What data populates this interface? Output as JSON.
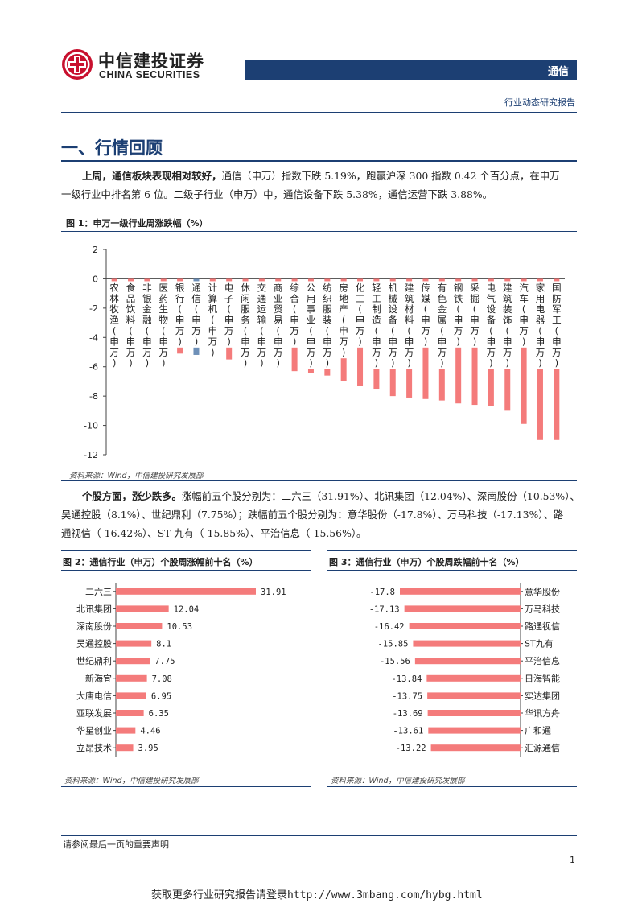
{
  "header": {
    "logo_cn": "中信建投证券",
    "logo_en": "CHINA SECURITIES",
    "sector": "通信",
    "report_type": "行业动态研究报告"
  },
  "section": {
    "title": "一、行情回顾"
  },
  "para1": {
    "lead": "上周，通信板块表现相对较好，",
    "line1_rest": "通信（申万）指数下跌 5.19%，跑赢沪深 300 指数 0.42 个百分点，在申万",
    "line2": "一级行业中排名第 6 位。二级子行业（申万）中，通信设备下跌 5.38%，通信运营下跌 3.88%。"
  },
  "figure1": {
    "title": "图 1：申万一级行业周涨跌幅（%）",
    "source": "资料来源：Wind，中信建投研究发展部"
  },
  "para2": {
    "lead": "个股方面，涨少跌多。",
    "line1_rest": "涨幅前五个股分别为：二六三（31.91%）、北讯集团（12.04%）、深南股份（10.53%）、",
    "line2": "吴通控股（8.1%）、世纪鼎利（7.75%）；跌幅前五个股分别为：意华股份（-17.8%）、万马科技（-17.13%）、路",
    "line3": "通视信（-16.42%）、ST 九有（-15.85%）、平治信息（-15.56%）。"
  },
  "figure2": {
    "title": "图 2：通信行业（申万）个股周涨幅前十名（%）",
    "source": "资料来源：Wind，中信建投研究发展部"
  },
  "figure3": {
    "title": "图 3：通信行业（申万）个股周跌幅前十名（%）",
    "source": "资料来源：Wind，中信建投研究发展部"
  },
  "footer": {
    "note": "请参阅最后一页的重要声明",
    "page": "1",
    "link": "获取更多行业研究报告请登录http://www.3mbang.com/hybg.html"
  },
  "colors": {
    "bar": "#f47b7b",
    "highlight": "#6e90b8",
    "brand": "#1c3f73",
    "logo_red": "#c8102e"
  },
  "chart_data": [
    {
      "type": "bar",
      "categories": [
        "农林牧渔(申万)",
        "食品饮料(申万)",
        "非银金融(申万)",
        "医药生物(申万)",
        "银行(申万)",
        "通信(申万)",
        "计算机(申万)",
        "电子(申万)",
        "休闲服务(申万)",
        "交通运输(申万)",
        "商业贸易(申万)",
        "综合(申万)",
        "公用事业(申万)",
        "纺织服装(申万)",
        "房地产(申万)",
        "化工(申万)",
        "轻工制造(申万)",
        "机械设备(申万)",
        "建筑材料(申万)",
        "传媒(申万)",
        "有色金属(申万)",
        "钢铁(申万)",
        "采掘(申万)",
        "电气设备(申万)",
        "建筑装饰(申万)",
        "汽车(申万)",
        "家用电器(申万)",
        "国防军工(申万)"
      ],
      "values": [
        -3.1,
        -4.0,
        -4.2,
        -4.5,
        -5.1,
        -5.19,
        -5.4,
        -5.5,
        -5.7,
        -5.9,
        -6.0,
        -6.3,
        -6.4,
        -6.6,
        -7.0,
        -7.3,
        -7.5,
        -8.0,
        -8.1,
        -8.2,
        -8.3,
        -8.5,
        -8.6,
        -8.7,
        -9.0,
        -9.9,
        -11.0,
        -11.0
      ],
      "highlight": "通信(申万)",
      "yticks": [
        2,
        0,
        -2,
        -4,
        -6,
        -8,
        -10,
        -12
      ],
      "ylim": [
        -12,
        2
      ]
    },
    {
      "type": "bar",
      "orientation": "horizontal",
      "categories": [
        "二六三",
        "北讯集团",
        "深南股份",
        "吴通控股",
        "世纪鼎利",
        "新海宜",
        "大唐电信",
        "亚联发展",
        "华星创业",
        "立昂技术"
      ],
      "values": [
        31.91,
        12.04,
        10.53,
        8.1,
        7.75,
        7.08,
        6.95,
        6.35,
        4.46,
        3.95
      ],
      "value_labels": [
        "31.91",
        "12.04",
        "10.53",
        "8.1",
        "7.75",
        "7.08",
        "6.95",
        "6.35",
        "4.46",
        "3.95"
      ],
      "xlim": [
        0,
        31.91
      ]
    },
    {
      "type": "bar",
      "orientation": "horizontal",
      "categories": [
        "意华股份",
        "万马科技",
        "路通视信",
        "ST九有",
        "平治信息",
        "日海智能",
        "实达集团",
        "华讯方舟",
        "广和通",
        "汇源通信"
      ],
      "values": [
        -17.8,
        -17.13,
        -16.42,
        -15.85,
        -15.56,
        -13.84,
        -13.75,
        -13.69,
        -13.61,
        -13.22
      ],
      "value_labels": [
        "-17.8",
        "-17.13",
        "-16.42",
        "-15.85",
        "-15.56",
        "-13.84",
        "-13.75",
        "-13.69",
        "-13.61",
        "-13.22"
      ],
      "xlim": [
        -17.8,
        0
      ]
    }
  ]
}
